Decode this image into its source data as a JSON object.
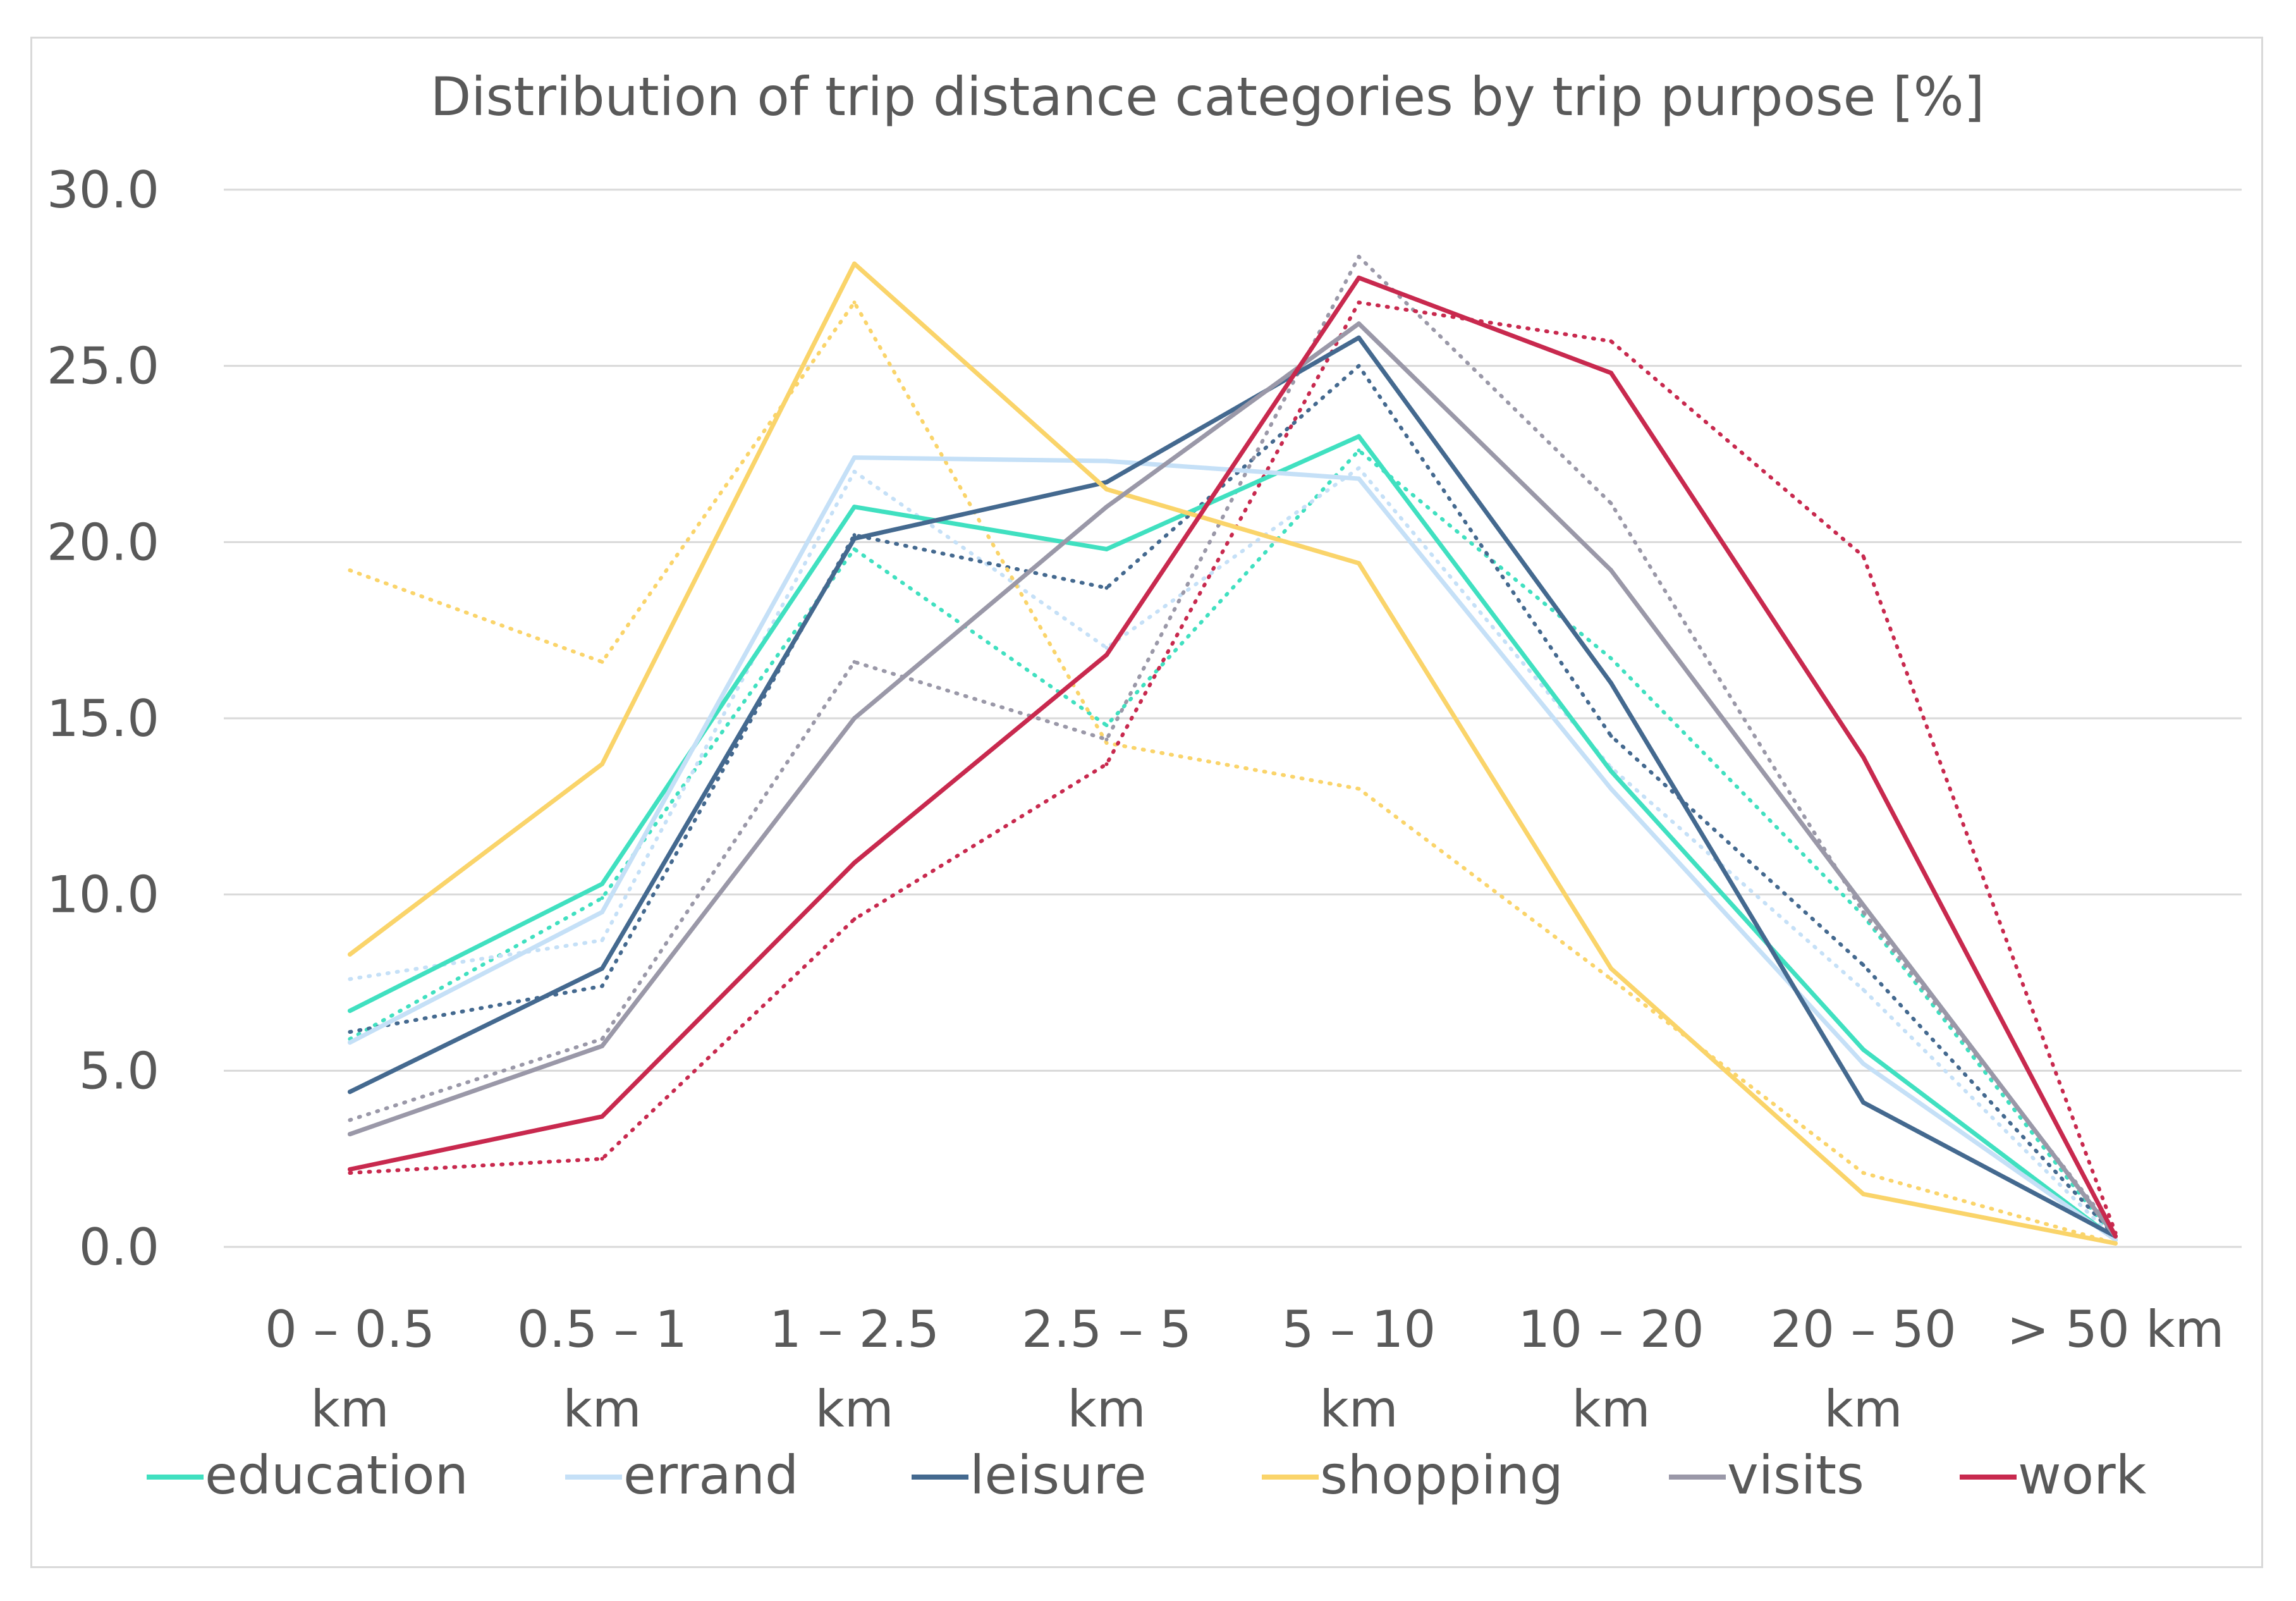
{
  "chart_data": {
    "type": "line",
    "title": "Distribution of trip distance categories by trip purpose [%]",
    "xlabel": "",
    "ylabel": "",
    "ylim": [
      0,
      30
    ],
    "yticks": [
      "0.0",
      "5.0",
      "10.0",
      "15.0",
      "20.0",
      "25.0",
      "30.0"
    ],
    "grid": true,
    "legend_position": "bottom",
    "categories": [
      [
        "0 – 0.5",
        "km"
      ],
      [
        "0.5 – 1",
        "km"
      ],
      [
        "1 – 2.5",
        "km"
      ],
      [
        "2.5 – 5",
        "km"
      ],
      [
        "5 – 10",
        "km"
      ],
      [
        "10 – 20",
        "km"
      ],
      [
        "20 – 50",
        "km"
      ],
      [
        "> 50 km"
      ]
    ],
    "series": [
      {
        "name": "education",
        "color": "#40e0c0",
        "values": [
          6.7,
          10.3,
          21.0,
          19.8,
          23.0,
          13.5,
          5.6,
          0.2
        ]
      },
      {
        "name": "errand",
        "color": "#c5e0f7",
        "values": [
          5.8,
          9.5,
          22.4,
          22.3,
          21.8,
          13.0,
          5.2,
          0.2
        ]
      },
      {
        "name": "leisure",
        "color": "#44698f",
        "values": [
          4.4,
          7.9,
          20.1,
          21.7,
          25.8,
          16.0,
          4.1,
          0.3
        ]
      },
      {
        "name": "shopping",
        "color": "#fad46a",
        "values": [
          8.3,
          13.7,
          27.9,
          21.5,
          19.4,
          7.9,
          1.5,
          0.1
        ]
      },
      {
        "name": "visits",
        "color": "#9a98a8",
        "values": [
          3.2,
          5.7,
          15.0,
          21.0,
          26.2,
          19.2,
          9.7,
          0.3
        ]
      },
      {
        "name": "work",
        "color": "#c8294e",
        "values": [
          2.2,
          3.7,
          10.9,
          16.8,
          27.5,
          24.8,
          13.9,
          0.3
        ]
      }
    ],
    "comparison_series": [
      {
        "name": "education",
        "color": "#40e0c0",
        "values": [
          5.9,
          9.9,
          19.8,
          14.8,
          22.6,
          16.7,
          9.4,
          0.2
        ]
      },
      {
        "name": "errand",
        "color": "#c5e0f7",
        "values": [
          7.6,
          8.7,
          22.0,
          17.0,
          22.1,
          13.6,
          7.3,
          0.2
        ]
      },
      {
        "name": "leisure",
        "color": "#44698f",
        "values": [
          6.1,
          7.4,
          20.2,
          18.7,
          25.0,
          14.5,
          8.0,
          0.3
        ]
      },
      {
        "name": "shopping",
        "color": "#fad46a",
        "values": [
          19.2,
          16.6,
          26.8,
          14.3,
          13.0,
          7.6,
          2.1,
          0.1
        ]
      },
      {
        "name": "visits",
        "color": "#9a98a8",
        "values": [
          3.6,
          5.9,
          16.6,
          14.4,
          28.1,
          21.1,
          9.5,
          0.4
        ]
      },
      {
        "name": "work",
        "color": "#c8294e",
        "values": [
          2.1,
          2.5,
          9.3,
          13.7,
          26.8,
          25.7,
          19.6,
          0.4
        ]
      }
    ]
  }
}
